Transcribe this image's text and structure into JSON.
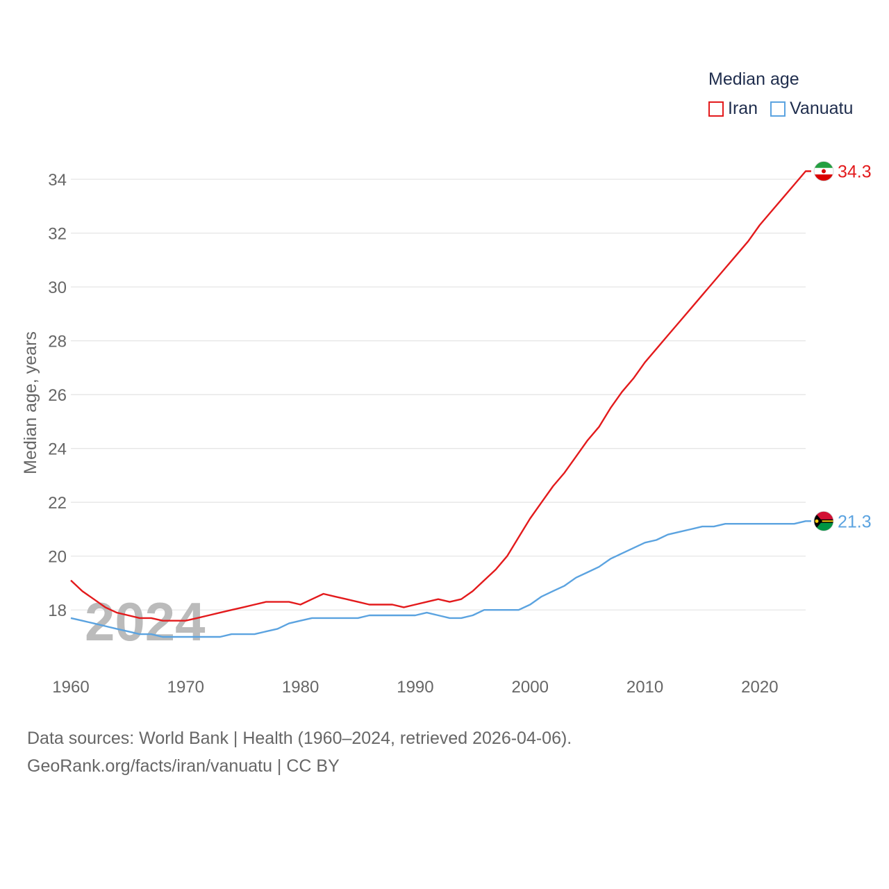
{
  "legend": {
    "title": "Median age",
    "items": [
      {
        "name": "Iran",
        "color": "#e31a1c"
      },
      {
        "name": "Vanuatu",
        "color": "#5ba3e0"
      }
    ]
  },
  "footer": {
    "line1": "Data sources: World Bank | Health (1960–2024, retrieved 2026-04-06).",
    "line2": "GeoRank.org/facts/iran/vanuatu | CC BY"
  },
  "chart_data": {
    "type": "line",
    "ylabel": "Median age, years",
    "xlabel": "",
    "xlim": [
      1960,
      2024
    ],
    "ylim": [
      16.2,
      35.5
    ],
    "x_ticks": [
      1960,
      1970,
      1980,
      1990,
      2000,
      2010,
      2020
    ],
    "y_ticks": [
      18,
      20,
      22,
      24,
      26,
      28,
      30,
      32,
      34
    ],
    "grid": true,
    "year_watermark": "2024",
    "legend_position": "top-right",
    "x": [
      1960,
      1961,
      1962,
      1963,
      1964,
      1965,
      1966,
      1967,
      1968,
      1969,
      1970,
      1971,
      1972,
      1973,
      1974,
      1975,
      1976,
      1977,
      1978,
      1979,
      1980,
      1981,
      1982,
      1983,
      1984,
      1985,
      1986,
      1987,
      1988,
      1989,
      1990,
      1991,
      1992,
      1993,
      1994,
      1995,
      1996,
      1997,
      1998,
      1999,
      2000,
      2001,
      2002,
      2003,
      2004,
      2005,
      2006,
      2007,
      2008,
      2009,
      2010,
      2011,
      2012,
      2013,
      2014,
      2015,
      2016,
      2017,
      2018,
      2019,
      2020,
      2021,
      2022,
      2023,
      2024
    ],
    "series": [
      {
        "name": "Iran",
        "color": "#e31a1c",
        "end_label": "34.3",
        "values": [
          19.1,
          18.7,
          18.4,
          18.1,
          17.9,
          17.8,
          17.7,
          17.7,
          17.6,
          17.6,
          17.6,
          17.7,
          17.8,
          17.9,
          18.0,
          18.1,
          18.2,
          18.3,
          18.3,
          18.3,
          18.2,
          18.4,
          18.6,
          18.5,
          18.4,
          18.3,
          18.2,
          18.2,
          18.2,
          18.1,
          18.2,
          18.3,
          18.4,
          18.3,
          18.4,
          18.7,
          19.1,
          19.5,
          20.0,
          20.7,
          21.4,
          22.0,
          22.6,
          23.1,
          23.7,
          24.3,
          24.8,
          25.5,
          26.1,
          26.6,
          27.2,
          27.7,
          28.2,
          28.7,
          29.2,
          29.7,
          30.2,
          30.7,
          31.2,
          31.7,
          32.3,
          32.8,
          33.3,
          33.8,
          34.3
        ]
      },
      {
        "name": "Vanuatu",
        "color": "#5ba3e0",
        "end_label": "21.3",
        "values": [
          17.7,
          17.6,
          17.5,
          17.4,
          17.3,
          17.2,
          17.1,
          17.1,
          17.0,
          17.0,
          17.0,
          17.0,
          17.0,
          17.0,
          17.1,
          17.1,
          17.1,
          17.2,
          17.3,
          17.5,
          17.6,
          17.7,
          17.7,
          17.7,
          17.7,
          17.7,
          17.8,
          17.8,
          17.8,
          17.8,
          17.8,
          17.9,
          17.8,
          17.7,
          17.7,
          17.8,
          18.0,
          18.0,
          18.0,
          18.0,
          18.2,
          18.5,
          18.7,
          18.9,
          19.2,
          19.4,
          19.6,
          19.9,
          20.1,
          20.3,
          20.5,
          20.6,
          20.8,
          20.9,
          21.0,
          21.1,
          21.1,
          21.2,
          21.2,
          21.2,
          21.2,
          21.2,
          21.2,
          21.2,
          21.3
        ]
      }
    ]
  }
}
